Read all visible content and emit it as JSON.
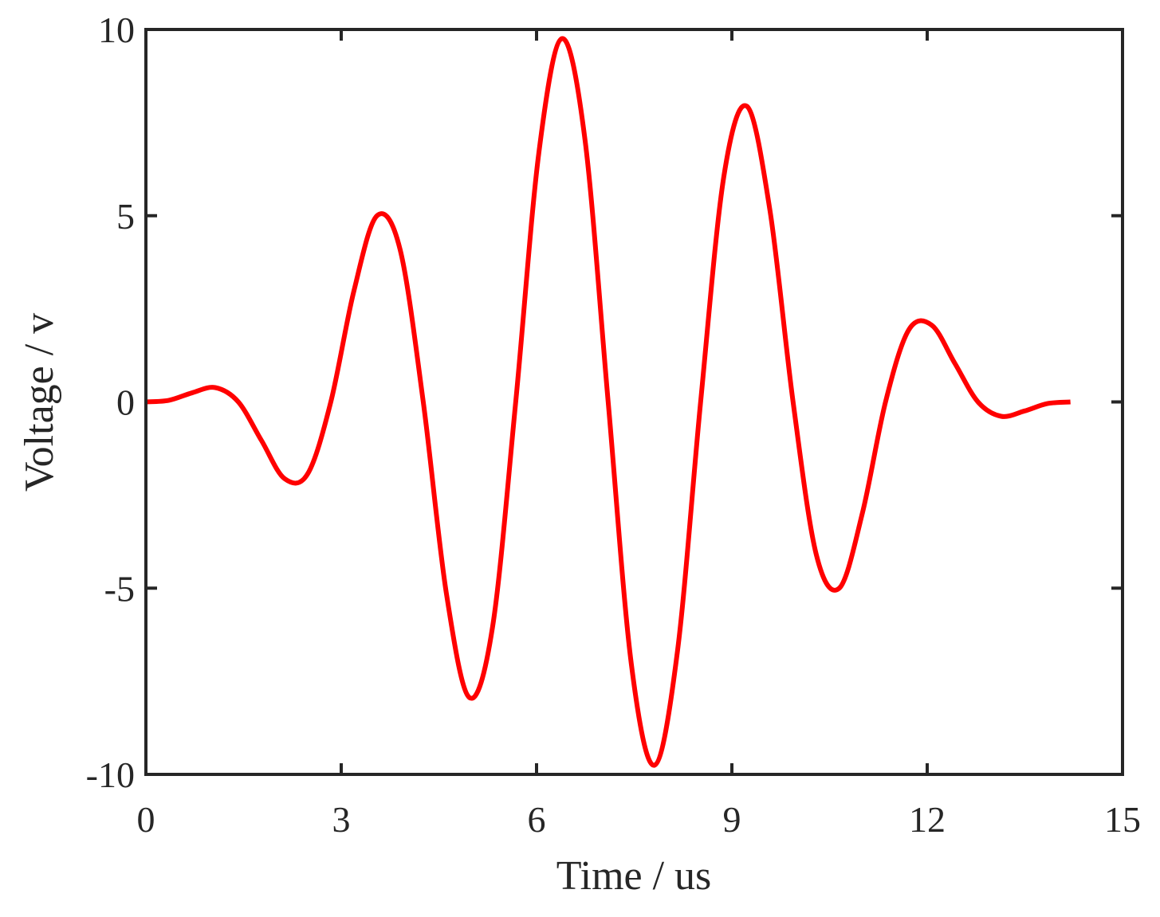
{
  "chart_data": {
    "type": "line",
    "x_label": "Time / us",
    "y_label": "Voltage / v",
    "x": [
      0,
      0.355,
      0.71,
      1.065,
      1.42,
      1.775,
      2.13,
      2.485,
      2.84,
      3.195,
      3.55,
      3.905,
      4.26,
      4.615,
      4.97,
      5.325,
      5.68,
      6.035,
      6.39,
      6.745,
      7.1,
      7.455,
      7.81,
      8.165,
      8.52,
      8.875,
      9.23,
      9.585,
      9.94,
      10.295,
      10.65,
      11.005,
      11.36,
      11.715,
      12.07,
      12.425,
      12.78,
      13.135,
      13.49,
      13.845,
      14.2
    ],
    "series": [
      {
        "color": "#ff0000",
        "values": [
          0,
          0.044,
          0.245,
          0.385,
          0,
          -1.035,
          -2.061,
          -1.93,
          0,
          2.982,
          5.0,
          4.088,
          0,
          -5.14,
          -7.939,
          -6.035,
          0,
          6.685,
          9.755,
          7.026,
          0,
          -7.026,
          -9.755,
          -6.685,
          0,
          6.035,
          7.939,
          5.14,
          0,
          -4.088,
          -5.0,
          -2.982,
          0,
          1.93,
          2.061,
          1.035,
          0,
          -0.385,
          -0.245,
          -0.044,
          0
        ]
      }
    ],
    "xlim": [
      0,
      15
    ],
    "xticks": [
      0,
      3,
      6,
      9,
      12,
      15
    ],
    "ylim": [
      -10,
      10
    ],
    "yticks": [
      -10,
      -5,
      0,
      5,
      10
    ],
    "grid": false
  }
}
